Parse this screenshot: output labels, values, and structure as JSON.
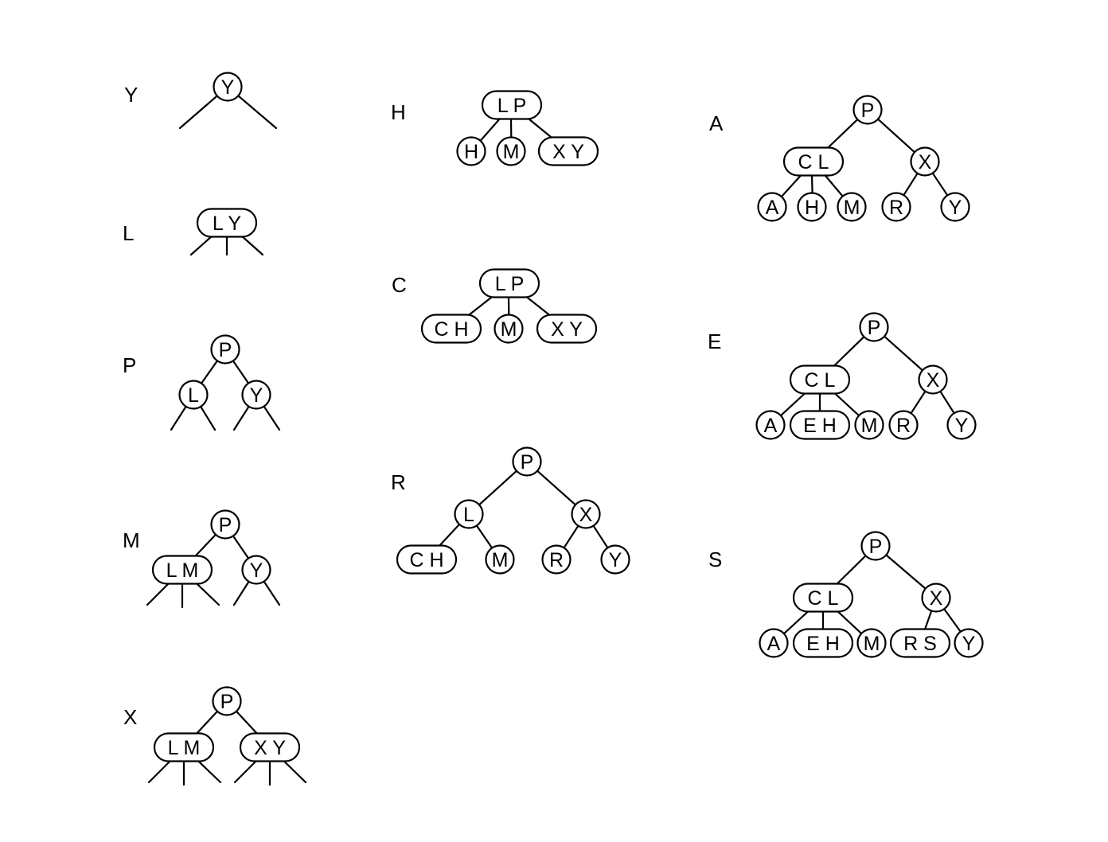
{
  "title": "",
  "steps": [
    {
      "label": "Y",
      "nodes": [
        {
          "id": "n1",
          "keys": "Y"
        }
      ],
      "edges": []
    },
    {
      "label": "L",
      "nodes": [
        {
          "id": "n1",
          "keys": "L Y"
        }
      ],
      "edges": []
    },
    {
      "label": "P",
      "nodes": [
        {
          "id": "n1",
          "keys": "P"
        },
        {
          "id": "n2",
          "keys": "L"
        },
        {
          "id": "n3",
          "keys": "Y"
        }
      ],
      "edges": [
        [
          "n1",
          "n2"
        ],
        [
          "n1",
          "n3"
        ]
      ]
    },
    {
      "label": "M",
      "nodes": [
        {
          "id": "n1",
          "keys": "P"
        },
        {
          "id": "n2",
          "keys": "L M"
        },
        {
          "id": "n3",
          "keys": "Y"
        }
      ],
      "edges": [
        [
          "n1",
          "n2"
        ],
        [
          "n1",
          "n3"
        ]
      ]
    },
    {
      "label": "X",
      "nodes": [
        {
          "id": "n1",
          "keys": "P"
        },
        {
          "id": "n2",
          "keys": "L M"
        },
        {
          "id": "n3",
          "keys": "X Y"
        }
      ],
      "edges": [
        [
          "n1",
          "n2"
        ],
        [
          "n1",
          "n3"
        ]
      ]
    },
    {
      "label": "H",
      "nodes": [
        {
          "id": "n1",
          "keys": "L P"
        },
        {
          "id": "n2",
          "keys": "H"
        },
        {
          "id": "n3",
          "keys": "M"
        },
        {
          "id": "n4",
          "keys": "X Y"
        }
      ],
      "edges": [
        [
          "n1",
          "n2"
        ],
        [
          "n1",
          "n3"
        ],
        [
          "n1",
          "n4"
        ]
      ]
    },
    {
      "label": "C",
      "nodes": [
        {
          "id": "n1",
          "keys": "L P"
        },
        {
          "id": "n2",
          "keys": "C H"
        },
        {
          "id": "n3",
          "keys": "M"
        },
        {
          "id": "n4",
          "keys": "X Y"
        }
      ],
      "edges": [
        [
          "n1",
          "n2"
        ],
        [
          "n1",
          "n3"
        ],
        [
          "n1",
          "n4"
        ]
      ]
    },
    {
      "label": "R",
      "nodes": [
        {
          "id": "n1",
          "keys": "P"
        },
        {
          "id": "n2",
          "keys": "L"
        },
        {
          "id": "n3",
          "keys": "X"
        },
        {
          "id": "n4",
          "keys": "C H"
        },
        {
          "id": "n5",
          "keys": "M"
        },
        {
          "id": "n6",
          "keys": "R"
        },
        {
          "id": "n7",
          "keys": "Y"
        }
      ],
      "edges": [
        [
          "n1",
          "n2"
        ],
        [
          "n1",
          "n3"
        ],
        [
          "n2",
          "n4"
        ],
        [
          "n2",
          "n5"
        ],
        [
          "n3",
          "n6"
        ],
        [
          "n3",
          "n7"
        ]
      ]
    },
    {
      "label": "A",
      "nodes": [
        {
          "id": "n1",
          "keys": "P"
        },
        {
          "id": "n2",
          "keys": "C L"
        },
        {
          "id": "n3",
          "keys": "X"
        },
        {
          "id": "n4",
          "keys": "A"
        },
        {
          "id": "n5",
          "keys": "H"
        },
        {
          "id": "n6",
          "keys": "M"
        },
        {
          "id": "n7",
          "keys": "R"
        },
        {
          "id": "n8",
          "keys": "Y"
        }
      ],
      "edges": [
        [
          "n1",
          "n2"
        ],
        [
          "n1",
          "n3"
        ],
        [
          "n2",
          "n4"
        ],
        [
          "n2",
          "n5"
        ],
        [
          "n2",
          "n6"
        ],
        [
          "n3",
          "n7"
        ],
        [
          "n3",
          "n8"
        ]
      ]
    },
    {
      "label": "E",
      "nodes": [
        {
          "id": "n1",
          "keys": "P"
        },
        {
          "id": "n2",
          "keys": "C L"
        },
        {
          "id": "n3",
          "keys": "X"
        },
        {
          "id": "n4",
          "keys": "A"
        },
        {
          "id": "n5",
          "keys": "E H"
        },
        {
          "id": "n6",
          "keys": "M"
        },
        {
          "id": "n7",
          "keys": "R"
        },
        {
          "id": "n8",
          "keys": "Y"
        }
      ],
      "edges": [
        [
          "n1",
          "n2"
        ],
        [
          "n1",
          "n3"
        ],
        [
          "n2",
          "n4"
        ],
        [
          "n2",
          "n5"
        ],
        [
          "n2",
          "n6"
        ],
        [
          "n3",
          "n7"
        ],
        [
          "n3",
          "n8"
        ]
      ]
    },
    {
      "label": "S",
      "nodes": [
        {
          "id": "n1",
          "keys": "P"
        },
        {
          "id": "n2",
          "keys": "C L"
        },
        {
          "id": "n3",
          "keys": "X"
        },
        {
          "id": "n4",
          "keys": "A"
        },
        {
          "id": "n5",
          "keys": "E H"
        },
        {
          "id": "n6",
          "keys": "M"
        },
        {
          "id": "n7",
          "keys": "R S"
        },
        {
          "id": "n8",
          "keys": "Y"
        }
      ],
      "edges": [
        [
          "n1",
          "n2"
        ],
        [
          "n1",
          "n3"
        ],
        [
          "n2",
          "n4"
        ],
        [
          "n2",
          "n5"
        ],
        [
          "n2",
          "n6"
        ],
        [
          "n3",
          "n7"
        ],
        [
          "n3",
          "n8"
        ]
      ]
    }
  ]
}
